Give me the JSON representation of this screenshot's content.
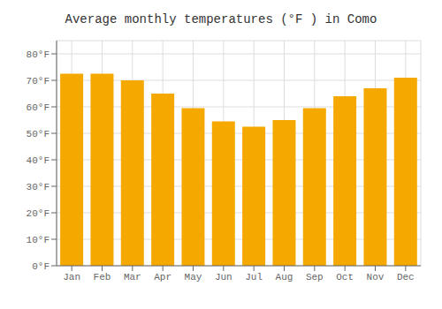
{
  "chart_data": {
    "type": "bar",
    "title": "Average monthly temperatures (°F ) in Como",
    "categories": [
      "Jan",
      "Feb",
      "Mar",
      "Apr",
      "May",
      "Jun",
      "Jul",
      "Aug",
      "Sep",
      "Oct",
      "Nov",
      "Dec"
    ],
    "values": [
      72.5,
      72.5,
      70,
      65,
      59.5,
      54.5,
      52.5,
      55,
      59.5,
      64,
      67,
      71
    ],
    "color": "#F5A800",
    "ylim": [
      0,
      85
    ],
    "yticks": [
      {
        "value": 0,
        "label": "0°F"
      },
      {
        "value": 10,
        "label": "10°F"
      },
      {
        "value": 20,
        "label": "20°F"
      },
      {
        "value": 30,
        "label": "30°F"
      },
      {
        "value": 40,
        "label": "40°F"
      },
      {
        "value": 50,
        "label": "50°F"
      },
      {
        "value": 60,
        "label": "60°F"
      },
      {
        "value": 70,
        "label": "70°F"
      },
      {
        "value": 80,
        "label": "80°F"
      }
    ],
    "grid": true
  }
}
